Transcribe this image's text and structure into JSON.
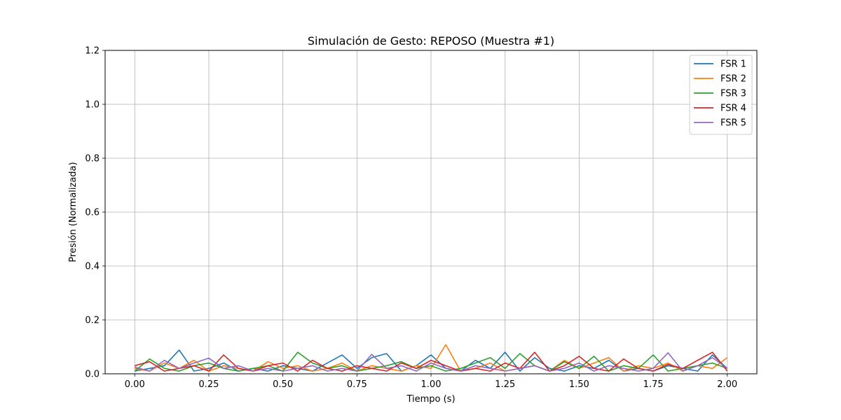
{
  "chart_data": {
    "type": "line",
    "title": "Simulación de Gesto: REPOSO (Muestra #1)",
    "xlabel": "Tiempo (s)",
    "ylabel": "Presión (Normalizada)",
    "xlim": [
      -0.1,
      2.1
    ],
    "ylim": [
      0,
      1.2
    ],
    "xticks": [
      0.0,
      0.25,
      0.5,
      0.75,
      1.0,
      1.25,
      1.5,
      1.75,
      2.0
    ],
    "xtick_labels": [
      "0.00",
      "0.25",
      "0.50",
      "0.75",
      "1.00",
      "1.25",
      "1.50",
      "1.75",
      "2.00"
    ],
    "yticks": [
      0.0,
      0.2,
      0.4,
      0.6,
      0.8,
      1.0,
      1.2
    ],
    "ytick_labels": [
      "0.0",
      "0.2",
      "0.4",
      "0.6",
      "0.8",
      "1.0",
      "1.2"
    ],
    "grid": true,
    "legend_position": "top-right",
    "x": [
      0.0,
      0.05,
      0.1,
      0.15,
      0.2,
      0.25,
      0.3,
      0.35,
      0.4,
      0.45,
      0.5,
      0.55,
      0.6,
      0.65,
      0.7,
      0.75,
      0.8,
      0.85,
      0.9,
      0.95,
      1.0,
      1.05,
      1.1,
      1.15,
      1.2,
      1.25,
      1.3,
      1.35,
      1.4,
      1.45,
      1.5,
      1.55,
      1.6,
      1.65,
      1.7,
      1.75,
      1.8,
      1.85,
      1.9,
      1.95,
      2.0
    ],
    "series": [
      {
        "name": "FSR 1",
        "color": "#1f77b4",
        "values": [
          0.01,
          0.02,
          0.03,
          0.088,
          0.01,
          0.02,
          0.04,
          0.01,
          0.02,
          0.01,
          0.03,
          0.02,
          0.01,
          0.04,
          0.07,
          0.02,
          0.06,
          0.075,
          0.01,
          0.03,
          0.07,
          0.02,
          0.01,
          0.05,
          0.02,
          0.08,
          0.01,
          0.06,
          0.02,
          0.01,
          0.03,
          0.02,
          0.05,
          0.01,
          0.02,
          0.01,
          0.03,
          0.02,
          0.01,
          0.07,
          0.02
        ]
      },
      {
        "name": "FSR 2",
        "color": "#ff7f0e",
        "values": [
          0.02,
          0.01,
          0.04,
          0.02,
          0.05,
          0.01,
          0.03,
          0.02,
          0.01,
          0.045,
          0.02,
          0.03,
          0.01,
          0.02,
          0.04,
          0.01,
          0.03,
          0.02,
          0.01,
          0.03,
          0.02,
          0.108,
          0.01,
          0.02,
          0.04,
          0.01,
          0.02,
          0.03,
          0.01,
          0.05,
          0.02,
          0.04,
          0.06,
          0.01,
          0.03,
          0.02,
          0.04,
          0.01,
          0.03,
          0.02,
          0.06
        ]
      },
      {
        "name": "FSR 3",
        "color": "#2ca02c",
        "values": [
          0.01,
          0.055,
          0.02,
          0.01,
          0.03,
          0.04,
          0.02,
          0.01,
          0.02,
          0.03,
          0.01,
          0.08,
          0.04,
          0.02,
          0.03,
          0.01,
          0.02,
          0.03,
          0.045,
          0.02,
          0.03,
          0.01,
          0.02,
          0.04,
          0.06,
          0.02,
          0.075,
          0.03,
          0.01,
          0.045,
          0.02,
          0.065,
          0.01,
          0.03,
          0.02,
          0.07,
          0.01,
          0.02,
          0.03,
          0.04,
          0.02
        ]
      },
      {
        "name": "FSR 4",
        "color": "#d62728",
        "values": [
          0.03,
          0.045,
          0.01,
          0.02,
          0.03,
          0.01,
          0.07,
          0.02,
          0.01,
          0.03,
          0.04,
          0.01,
          0.05,
          0.02,
          0.01,
          0.03,
          0.02,
          0.01,
          0.04,
          0.02,
          0.05,
          0.03,
          0.01,
          0.02,
          0.01,
          0.04,
          0.02,
          0.08,
          0.01,
          0.03,
          0.065,
          0.02,
          0.01,
          0.055,
          0.02,
          0.01,
          0.035,
          0.02,
          0.05,
          0.08,
          0.01
        ]
      },
      {
        "name": "FSR 5",
        "color": "#9467bd",
        "values": [
          0.025,
          0.01,
          0.05,
          0.02,
          0.04,
          0.058,
          0.02,
          0.03,
          0.01,
          0.02,
          0.01,
          0.02,
          0.03,
          0.01,
          0.02,
          0.01,
          0.072,
          0.02,
          0.03,
          0.01,
          0.04,
          0.02,
          0.01,
          0.03,
          0.02,
          0.01,
          0.02,
          0.03,
          0.01,
          0.02,
          0.04,
          0.01,
          0.03,
          0.02,
          0.01,
          0.02,
          0.078,
          0.01,
          0.03,
          0.06,
          0.02
        ]
      }
    ]
  }
}
